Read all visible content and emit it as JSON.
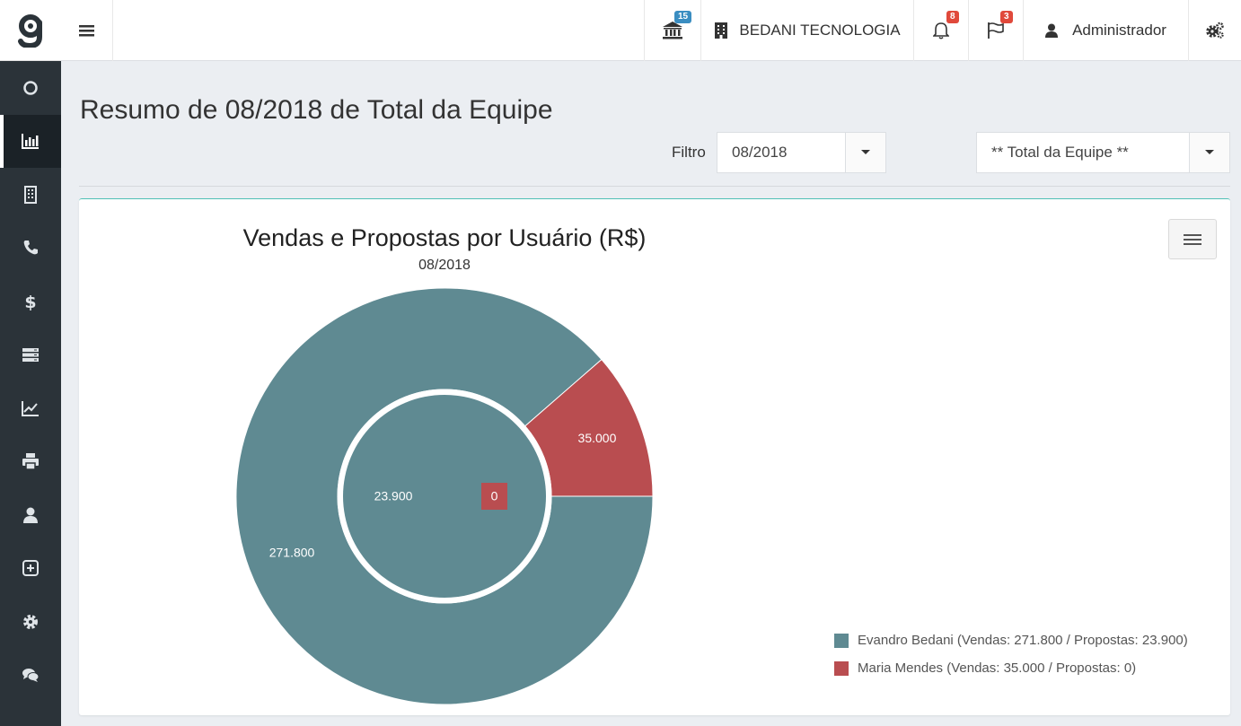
{
  "header": {
    "bank_badge": "15",
    "company": "BEDANI TECNOLOGIA",
    "notifications_badge": "8",
    "flags_badge": "3",
    "user": "Administrador"
  },
  "sidebar": {
    "items": [
      {
        "icon": "circle-icon"
      },
      {
        "icon": "bar-chart-icon",
        "active": true
      },
      {
        "icon": "building-icon"
      },
      {
        "icon": "phone-icon"
      },
      {
        "icon": "dollar-icon"
      },
      {
        "icon": "server-icon"
      },
      {
        "icon": "line-chart-icon"
      },
      {
        "icon": "print-icon"
      },
      {
        "icon": "user-icon"
      },
      {
        "icon": "plus-square-icon"
      },
      {
        "icon": "gear-icon"
      },
      {
        "icon": "comments-icon"
      }
    ]
  },
  "page": {
    "title": "Resumo de 08/2018 de Total da Equipe",
    "filter_label": "Filtro",
    "period_value": "08/2018",
    "team_value": "** Total da Equipe **"
  },
  "chart_data": {
    "type": "pie",
    "title": "Vendas e Propostas por Usuário (R$)",
    "subtitle": "08/2018",
    "series": [
      {
        "name": "Vendas",
        "ring": "outer",
        "values": [
          271800,
          35000
        ],
        "labels": [
          "271.800",
          "35.000"
        ]
      },
      {
        "name": "Propostas",
        "ring": "inner",
        "values": [
          23900,
          0
        ],
        "labels": [
          "23.900",
          "0"
        ]
      }
    ],
    "categories": [
      "Evandro Bedani",
      "Maria Mendes"
    ],
    "colors": [
      "#5f8a92",
      "#b94d50"
    ],
    "legend": [
      "Evandro Bedani (Vendas: 271.800 / Propostas: 23.900)",
      "Maria Mendes (Vendas: 35.000 / Propostas: 0)"
    ],
    "legend_position": "bottom-right"
  }
}
